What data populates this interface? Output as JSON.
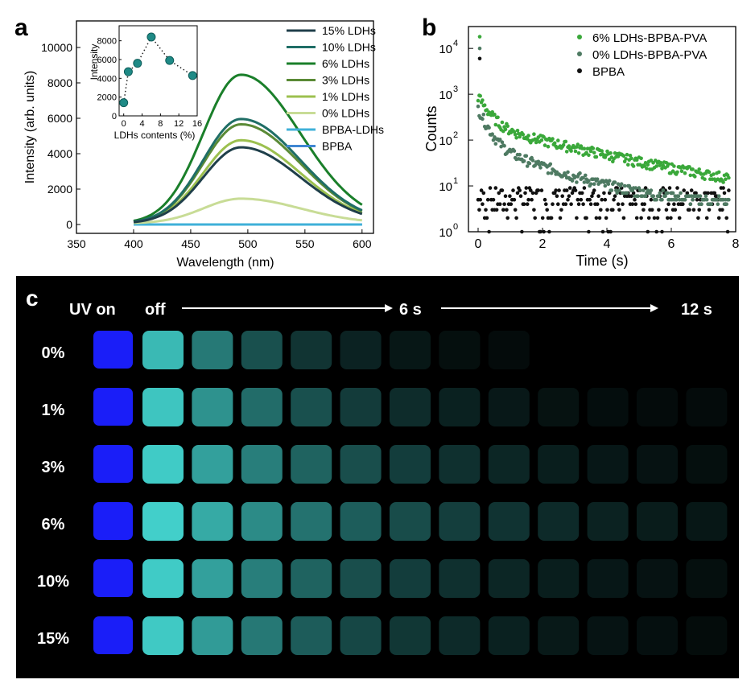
{
  "panel_labels": {
    "a": "a",
    "b": "b",
    "c": "c"
  },
  "chart_data": [
    {
      "panel": "a",
      "type": "line",
      "xlabel": "Wavelength (nm)",
      "ylabel": "Intensity (arb. units)",
      "xlim": [
        350,
        610
      ],
      "ylim": [
        -500,
        11500
      ],
      "xticks": [
        350,
        400,
        450,
        500,
        550,
        600
      ],
      "yticks": [
        0,
        2000,
        4000,
        6000,
        8000,
        10000
      ],
      "x": [
        400,
        410,
        420,
        430,
        440,
        450,
        460,
        470,
        480,
        490,
        500,
        510,
        520,
        530,
        540,
        550,
        560,
        570,
        580,
        590,
        600
      ],
      "series": [
        {
          "name": "15% LDHs",
          "color": "#1f3f4a",
          "peak": 4300,
          "tail": 280
        },
        {
          "name": "10% LDHs",
          "color": "#1f6e66",
          "peak": 5900,
          "tail": 330
        },
        {
          "name": "6% LDHs",
          "color": "#1a7f2a",
          "peak": 8400,
          "tail": 450
        },
        {
          "name": "3% LDHs",
          "color": "#5a8a36",
          "peak": 5600,
          "tail": 350
        },
        {
          "name": "1% LDHs",
          "color": "#9cc04f",
          "peak": 4700,
          "tail": 300
        },
        {
          "name": "0% LDHs",
          "color": "#c8dc96",
          "peak": 1400,
          "tail": 130
        },
        {
          "name": "BPBA-LDHs",
          "color": "#3fb0d8",
          "peak": 0,
          "tail": 0
        },
        {
          "name": "BPBA",
          "color": "#3f86d2",
          "peak": 0,
          "tail": 0
        }
      ],
      "inset": {
        "type": "scatter",
        "xlabel": "LDHs contents (%)",
        "ylabel": "Intensity",
        "xlim": [
          -1,
          16
        ],
        "ylim": [
          0,
          9600
        ],
        "xticks": [
          0,
          4,
          8,
          12,
          16
        ],
        "yticks": [
          0,
          2000,
          4000,
          6000,
          8000
        ],
        "x": [
          0,
          1,
          3,
          6,
          10,
          15
        ],
        "y": [
          1400,
          4700,
          5600,
          8400,
          5900,
          4300
        ],
        "color": "#1f8a86"
      }
    },
    {
      "panel": "b",
      "type": "scatter",
      "xlabel": "Time (s)",
      "ylabel": "Counts",
      "xlim": [
        -0.3,
        8
      ],
      "ylim": [
        1,
        30000
      ],
      "yscale": "log",
      "xticks": [
        0,
        2,
        4,
        6,
        8
      ],
      "yticks": [
        "10^0",
        "10^1",
        "10^2",
        "10^3",
        "10^4"
      ],
      "series": [
        {
          "name": "6% LDHs-BPBA-PVA",
          "color": "#3aa83a",
          "start": 900,
          "tau1": 0.3,
          "a1": 700,
          "tau2": 2.6,
          "a2": 200,
          "base": 5
        },
        {
          "name": "0% LDHs-BPBA-PVA",
          "color": "#4e7a62",
          "start": 500,
          "tau1": 0.25,
          "a1": 420,
          "tau2": 1.6,
          "a2": 80,
          "base": 4
        },
        {
          "name": "BPBA",
          "color": "#111111",
          "start": 10,
          "tau1": 0.5,
          "a1": 5,
          "tau2": 1.0,
          "a2": 0,
          "base": 3
        }
      ]
    },
    {
      "panel": "c",
      "type": "table",
      "header": {
        "uv_on": "UV on",
        "off": "off",
        "t6": "6 s",
        "t12": "12 s"
      },
      "rows": [
        {
          "label": "0%",
          "count": 8,
          "decay": 0.42
        },
        {
          "label": "1%",
          "count": 12,
          "decay": 0.3
        },
        {
          "label": "3%",
          "count": 12,
          "decay": 0.24
        },
        {
          "label": "6%",
          "count": 12,
          "decay": 0.2
        },
        {
          "label": "10%",
          "count": 12,
          "decay": 0.24
        },
        {
          "label": "15%",
          "count": 12,
          "decay": 0.26
        }
      ],
      "uv_color": "#1a1ef8",
      "glow_color": [
        72,
        228,
        222
      ]
    }
  ]
}
